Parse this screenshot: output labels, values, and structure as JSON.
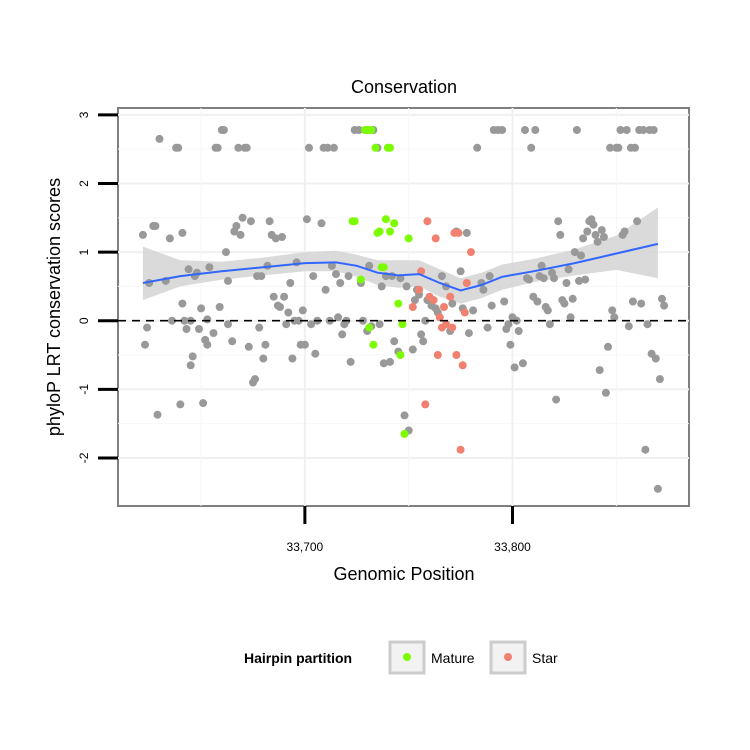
{
  "chart_data": {
    "type": "scatter",
    "title": "Conservation",
    "xlabel": "Genomic Position",
    "ylabel": "phyloP LRT conservation scores",
    "xlim": [
      33610,
      33885
    ],
    "ylim": [
      -2.7,
      3.1
    ],
    "x_ticks": [
      33700,
      33800
    ],
    "x_tick_labels": [
      "33,700",
      "33,800"
    ],
    "y_ticks": [
      -2,
      -1,
      0,
      1,
      2,
      3
    ],
    "y_tick_labels": [
      "-2",
      "-1",
      "0",
      "1",
      "2",
      "3"
    ],
    "reference_line": {
      "y": 0,
      "style": "dashed"
    },
    "grid": true,
    "legend": {
      "title": "Hairpin partition",
      "position": "bottom",
      "entries": [
        {
          "label": "Mature",
          "color": "#7CFC00"
        },
        {
          "label": "Star",
          "color": "#F08070"
        }
      ]
    },
    "colors": {
      "other": "#999999",
      "Mature": "#7CFC00",
      "Star": "#F08070",
      "smooth": "#3366FF",
      "ribbon": "#D3D3D3"
    },
    "series": [
      {
        "name": "",
        "color": "#999999",
        "points": [
          [
            33622,
            1.25
          ],
          [
            33623,
            -0.35
          ],
          [
            33624,
            -0.1
          ],
          [
            33625,
            0.55
          ],
          [
            33627,
            1.38
          ],
          [
            33628,
            1.38
          ],
          [
            33629,
            -1.37
          ],
          [
            33630,
            2.65
          ],
          [
            33633,
            0.58
          ],
          [
            33635,
            1.2
          ],
          [
            33636,
            0.0
          ],
          [
            33638,
            2.52
          ],
          [
            33639,
            2.52
          ],
          [
            33640,
            -1.22
          ],
          [
            33641,
            1.28
          ],
          [
            33641,
            0.25
          ],
          [
            33642,
            0.0
          ],
          [
            33643,
            -0.12
          ],
          [
            33644,
            0.75
          ],
          [
            33645,
            -0.65
          ],
          [
            33645,
            0.0
          ],
          [
            33646,
            -0.52
          ],
          [
            33647,
            0.65
          ],
          [
            33648,
            0.7
          ],
          [
            33649,
            -0.12
          ],
          [
            33650,
            0.18
          ],
          [
            33651,
            -1.2
          ],
          [
            33652,
            -0.28
          ],
          [
            33653,
            0.02
          ],
          [
            33653,
            -0.35
          ],
          [
            33654,
            0.78
          ],
          [
            33656,
            -0.18
          ],
          [
            33657,
            2.52
          ],
          [
            33658,
            2.52
          ],
          [
            33659,
            0.2
          ],
          [
            33660,
            2.78
          ],
          [
            33661,
            2.78
          ],
          [
            33662,
            1.0
          ],
          [
            33663,
            0.58
          ],
          [
            33663,
            -0.05
          ],
          [
            33665,
            -0.3
          ],
          [
            33666,
            1.3
          ],
          [
            33667,
            1.38
          ],
          [
            33668,
            2.52
          ],
          [
            33669,
            1.25
          ],
          [
            33670,
            1.5
          ],
          [
            33671,
            2.52
          ],
          [
            33672,
            2.52
          ],
          [
            33673,
            -0.38
          ],
          [
            33674,
            1.45
          ],
          [
            33675,
            -0.9
          ],
          [
            33676,
            -0.85
          ],
          [
            33677,
            0.65
          ],
          [
            33678,
            -0.1
          ],
          [
            33679,
            0.65
          ],
          [
            33680,
            -0.55
          ],
          [
            33681,
            -0.35
          ],
          [
            33682,
            0.8
          ],
          [
            33683,
            1.45
          ],
          [
            33684,
            1.25
          ],
          [
            33685,
            0.35
          ],
          [
            33686,
            1.2
          ],
          [
            33687,
            0.22
          ],
          [
            33688,
            0.2
          ],
          [
            33689,
            1.22
          ],
          [
            33690,
            0.35
          ],
          [
            33691,
            -0.05
          ],
          [
            33692,
            0.12
          ],
          [
            33693,
            0.55
          ],
          [
            33694,
            -0.55
          ],
          [
            33695,
            0.0
          ],
          [
            33696,
            0.85
          ],
          [
            33697,
            0.0
          ],
          [
            33698,
            -0.35
          ],
          [
            33699,
            0.15
          ],
          [
            33700,
            -0.35
          ],
          [
            33701,
            1.48
          ],
          [
            33702,
            2.52
          ],
          [
            33703,
            -0.05
          ],
          [
            33704,
            0.65
          ],
          [
            33705,
            -0.48
          ],
          [
            33706,
            0.0
          ],
          [
            33708,
            1.42
          ],
          [
            33709,
            2.52
          ],
          [
            33710,
            0.45
          ],
          [
            33711,
            2.52
          ],
          [
            33712,
            0.0
          ],
          [
            33713,
            0.8
          ],
          [
            33714,
            2.52
          ],
          [
            33715,
            0.68
          ],
          [
            33716,
            0.05
          ],
          [
            33717,
            0.55
          ],
          [
            33718,
            -0.2
          ],
          [
            33719,
            -0.05
          ],
          [
            33720,
            0.0
          ],
          [
            33721,
            0.65
          ],
          [
            33722,
            -0.6
          ],
          [
            33724,
            2.78
          ],
          [
            33726,
            2.78
          ],
          [
            33727,
            0.55
          ],
          [
            33728,
            0.0
          ],
          [
            33729,
            2.78
          ],
          [
            33730,
            -0.15
          ],
          [
            33731,
            0.8
          ],
          [
            33732,
            -0.08
          ],
          [
            33733,
            2.78
          ],
          [
            33735,
            2.52
          ],
          [
            33736,
            -0.05
          ],
          [
            33737,
            0.5
          ],
          [
            33738,
            -0.62
          ],
          [
            33739,
            0.65
          ],
          [
            33741,
            -0.6
          ],
          [
            33742,
            0.65
          ],
          [
            33743,
            -0.3
          ],
          [
            33745,
            -0.45
          ],
          [
            33746,
            0.62
          ],
          [
            33748,
            -1.38
          ],
          [
            33749,
            0.5
          ],
          [
            33750,
            -1.6
          ],
          [
            33752,
            -0.42
          ],
          [
            33753,
            0.3
          ],
          [
            33754,
            0.45
          ],
          [
            33755,
            0.38
          ],
          [
            33756,
            -0.2
          ],
          [
            33757,
            -0.3
          ],
          [
            33758,
            0.0
          ],
          [
            33759,
            0.3
          ],
          [
            33761,
            0.22
          ],
          [
            33763,
            0.18
          ],
          [
            33764,
            0.12
          ],
          [
            33766,
            0.65
          ],
          [
            33768,
            0.5
          ],
          [
            33770,
            -0.15
          ],
          [
            33771,
            0.25
          ],
          [
            33773,
            1.3
          ],
          [
            33775,
            0.72
          ],
          [
            33776,
            0.18
          ],
          [
            33778,
            1.28
          ],
          [
            33779,
            -0.18
          ],
          [
            33781,
            0.15
          ],
          [
            33783,
            2.52
          ],
          [
            33785,
            0.55
          ],
          [
            33786,
            0.45
          ],
          [
            33788,
            -0.1
          ],
          [
            33789,
            0.65
          ],
          [
            33790,
            0.22
          ],
          [
            33791,
            2.78
          ],
          [
            33793,
            2.78
          ],
          [
            33795,
            2.78
          ],
          [
            33796,
            0.28
          ],
          [
            33797,
            -0.12
          ],
          [
            33798,
            -0.05
          ],
          [
            33799,
            -0.35
          ],
          [
            33800,
            0.05
          ],
          [
            33801,
            -0.68
          ],
          [
            33802,
            0.0
          ],
          [
            33803,
            -0.15
          ],
          [
            33805,
            -0.62
          ],
          [
            33806,
            2.78
          ],
          [
            33807,
            0.62
          ],
          [
            33808,
            0.6
          ],
          [
            33809,
            2.52
          ],
          [
            33810,
            0.35
          ],
          [
            33811,
            2.78
          ],
          [
            33812,
            0.28
          ],
          [
            33813,
            0.65
          ],
          [
            33814,
            0.8
          ],
          [
            33815,
            0.62
          ],
          [
            33816,
            0.2
          ],
          [
            33817,
            0.15
          ],
          [
            33818,
            -0.05
          ],
          [
            33819,
            0.7
          ],
          [
            33820,
            0.62
          ],
          [
            33821,
            -1.15
          ],
          [
            33822,
            1.45
          ],
          [
            33823,
            1.25
          ],
          [
            33824,
            0.3
          ],
          [
            33825,
            0.25
          ],
          [
            33826,
            0.55
          ],
          [
            33827,
            0.75
          ],
          [
            33828,
            0.05
          ],
          [
            33829,
            0.32
          ],
          [
            33830,
            1.0
          ],
          [
            33831,
            2.78
          ],
          [
            33832,
            0.58
          ],
          [
            33833,
            0.95
          ],
          [
            33834,
            1.2
          ],
          [
            33835,
            0.6
          ],
          [
            33836,
            1.3
          ],
          [
            33837,
            1.45
          ],
          [
            33838,
            1.48
          ],
          [
            33839,
            1.4
          ],
          [
            33840,
            1.25
          ],
          [
            33841,
            1.15
          ],
          [
            33842,
            -0.72
          ],
          [
            33843,
            1.32
          ],
          [
            33844,
            1.22
          ],
          [
            33845,
            -1.05
          ],
          [
            33846,
            -0.38
          ],
          [
            33847,
            2.52
          ],
          [
            33848,
            0.15
          ],
          [
            33849,
            0.05
          ],
          [
            33850,
            2.52
          ],
          [
            33851,
            2.52
          ],
          [
            33852,
            2.78
          ],
          [
            33853,
            1.25
          ],
          [
            33854,
            1.3
          ],
          [
            33855,
            2.78
          ],
          [
            33856,
            -0.08
          ],
          [
            33857,
            2.52
          ],
          [
            33858,
            0.28
          ],
          [
            33859,
            2.52
          ],
          [
            33860,
            1.45
          ],
          [
            33861,
            2.78
          ],
          [
            33862,
            0.25
          ],
          [
            33863,
            2.78
          ],
          [
            33864,
            -1.88
          ],
          [
            33865,
            -0.05
          ],
          [
            33866,
            2.78
          ],
          [
            33867,
            -0.48
          ],
          [
            33868,
            2.78
          ],
          [
            33869,
            -0.55
          ],
          [
            33870,
            -2.45
          ],
          [
            33871,
            -0.85
          ],
          [
            33872,
            0.32
          ],
          [
            33873,
            0.22
          ]
        ]
      },
      {
        "name": "Mature",
        "color": "#7CFC00",
        "points": [
          [
            33723,
            1.45
          ],
          [
            33724,
            1.45
          ],
          [
            33727,
            0.6
          ],
          [
            33729,
            2.78
          ],
          [
            33730,
            2.78
          ],
          [
            33731,
            2.78
          ],
          [
            33731,
            -0.1
          ],
          [
            33732,
            2.78
          ],
          [
            33733,
            -0.35
          ],
          [
            33734,
            2.52
          ],
          [
            33735,
            1.28
          ],
          [
            33736,
            1.3
          ],
          [
            33737,
            0.78
          ],
          [
            33738,
            0.78
          ],
          [
            33739,
            1.48
          ],
          [
            33740,
            2.52
          ],
          [
            33741,
            2.52
          ],
          [
            33741,
            1.3
          ],
          [
            33743,
            1.42
          ],
          [
            33745,
            0.25
          ],
          [
            33746,
            -0.5
          ],
          [
            33747,
            -0.05
          ],
          [
            33748,
            -1.65
          ],
          [
            33750,
            1.2
          ]
        ]
      },
      {
        "name": "Star",
        "color": "#F08070",
        "points": [
          [
            33752,
            0.2
          ],
          [
            33755,
            0.45
          ],
          [
            33756,
            0.72
          ],
          [
            33758,
            -1.22
          ],
          [
            33759,
            1.45
          ],
          [
            33760,
            0.35
          ],
          [
            33762,
            0.3
          ],
          [
            33763,
            1.2
          ],
          [
            33764,
            -0.5
          ],
          [
            33765,
            0.05
          ],
          [
            33766,
            -0.1
          ],
          [
            33767,
            0.2
          ],
          [
            33768,
            -0.05
          ],
          [
            33770,
            0.35
          ],
          [
            33771,
            -0.1
          ],
          [
            33772,
            1.28
          ],
          [
            33773,
            -0.5
          ],
          [
            33774,
            1.28
          ],
          [
            33775,
            -1.88
          ],
          [
            33776,
            -0.65
          ],
          [
            33777,
            0.12
          ],
          [
            33778,
            0.55
          ],
          [
            33780,
            1.0
          ]
        ]
      }
    ],
    "smooth": {
      "x": [
        33622,
        33640,
        33660,
        33680,
        33700,
        33715,
        33725,
        33735,
        33745,
        33755,
        33765,
        33775,
        33785,
        33795,
        33810,
        33830,
        33850,
        33870
      ],
      "y": [
        0.55,
        0.65,
        0.72,
        0.78,
        0.84,
        0.85,
        0.8,
        0.7,
        0.66,
        0.68,
        0.55,
        0.44,
        0.52,
        0.64,
        0.72,
        0.84,
        0.98,
        1.12
      ],
      "lower": [
        0.3,
        0.5,
        0.6,
        0.66,
        0.72,
        0.72,
        0.64,
        0.52,
        0.48,
        0.5,
        0.35,
        0.25,
        0.33,
        0.45,
        0.56,
        0.66,
        0.74,
        0.62
      ],
      "upper": [
        1.08,
        0.88,
        0.86,
        0.92,
        1.0,
        1.02,
        0.96,
        0.88,
        0.88,
        0.88,
        0.75,
        0.62,
        0.7,
        0.82,
        0.9,
        1.04,
        1.24,
        1.65
      ]
    }
  }
}
